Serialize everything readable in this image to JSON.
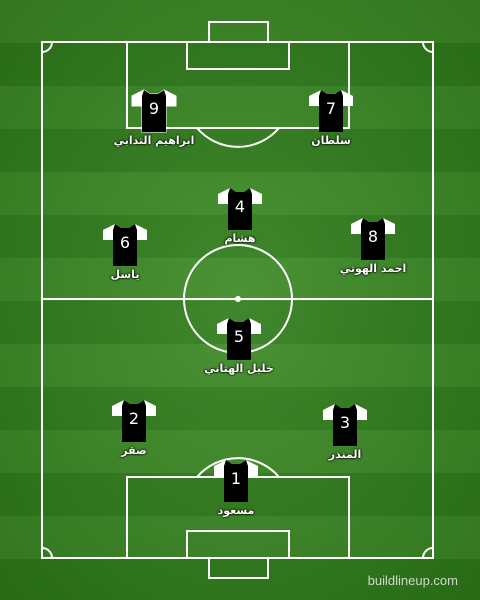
{
  "pitch": {
    "grass_light": "#3b8a24",
    "grass_dark": "#2f7d1a",
    "line_color": "#ffffff"
  },
  "kit": {
    "body_color": "#000000",
    "sleeve_color": "#ffffff"
  },
  "players": [
    {
      "number": "9",
      "name": "ابراهيم التدابي"
    },
    {
      "number": "7",
      "name": "سلطان"
    },
    {
      "number": "4",
      "name": "هشام"
    },
    {
      "number": "6",
      "name": "ياسل"
    },
    {
      "number": "8",
      "name": "احمد الهوتي"
    },
    {
      "number": "5",
      "name": "خليل الهتاني"
    },
    {
      "number": "2",
      "name": "صقر"
    },
    {
      "number": "3",
      "name": "المنذر"
    },
    {
      "number": "1",
      "name": "مسعود"
    }
  ],
  "watermark": "buildlineup.com"
}
